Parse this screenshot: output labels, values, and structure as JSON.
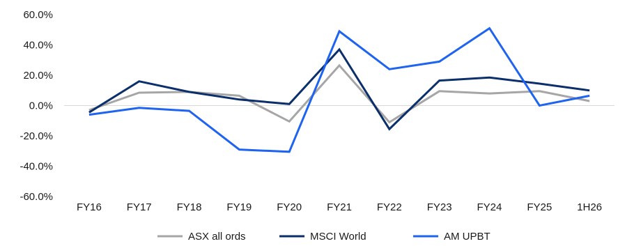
{
  "chart_data": {
    "type": "line",
    "categories": [
      "FY16",
      "FY17",
      "FY18",
      "FY19",
      "FY20",
      "FY21",
      "FY22",
      "FY23",
      "FY24",
      "FY25",
      "1H26"
    ],
    "y_ticks": [
      "60.0%",
      "40.0%",
      "20.0%",
      "0.0%",
      "-20.0%",
      "-40.0%",
      "-60.0%"
    ],
    "ylim": [
      -60,
      60
    ],
    "y_unit": "%",
    "grid": false,
    "zero_line": true,
    "legend_position": "bottom",
    "series": [
      {
        "name": "ASX all ords",
        "color": "#a6a6a6",
        "values": [
          -3.0,
          8.5,
          9.0,
          6.5,
          -10.5,
          26.5,
          -11.0,
          9.5,
          8.0,
          9.5,
          3.0
        ]
      },
      {
        "name": "MSCI World",
        "color": "#0b2f6b",
        "values": [
          -4.5,
          16.0,
          9.0,
          4.0,
          1.0,
          37.0,
          -15.5,
          16.5,
          18.5,
          14.5,
          10.0
        ]
      },
      {
        "name": "AM UPBT",
        "color": "#1e64f0",
        "values": [
          -6.0,
          -1.5,
          -3.5,
          -29.0,
          -30.5,
          49.0,
          24.0,
          29.0,
          51.0,
          0.0,
          6.5
        ]
      }
    ]
  }
}
